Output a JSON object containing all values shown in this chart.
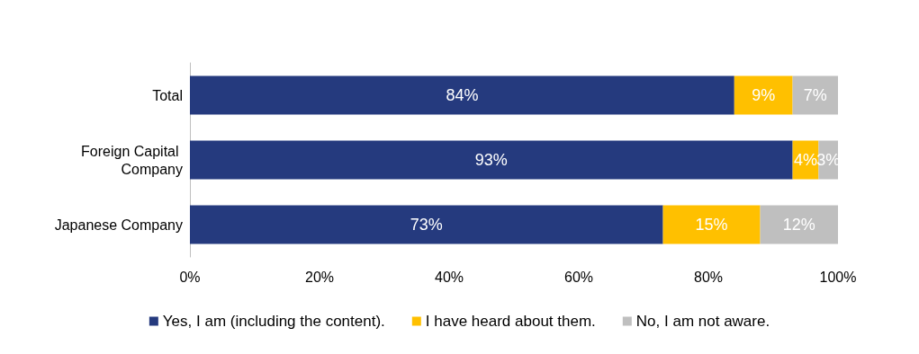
{
  "chart_data": {
    "type": "bar",
    "orientation": "horizontal",
    "stacked": true,
    "categories": [
      "Total",
      "Foreign Capital Company",
      "Japanese Company"
    ],
    "series": [
      {
        "name": "Yes, I am (including the content).",
        "color": "#253a7e",
        "values": [
          84,
          93,
          73
        ],
        "value_labels": [
          "84%",
          "93%",
          "73%"
        ]
      },
      {
        "name": "I have heard about them.",
        "color": "#ffc000",
        "values": [
          9,
          4,
          15
        ],
        "value_labels": [
          "9%",
          "4%",
          "15%"
        ]
      },
      {
        "name": "No, I am not aware.",
        "color": "#bfbfbf",
        "values": [
          7,
          3,
          12
        ],
        "value_labels": [
          "7%",
          "3%",
          "12%"
        ]
      }
    ],
    "xlim": [
      0,
      100
    ],
    "xticks": [
      {
        "value": 0,
        "label": "0%"
      },
      {
        "value": 20,
        "label": "20%"
      },
      {
        "value": 40,
        "label": "40%"
      },
      {
        "value": 60,
        "label": "60%"
      },
      {
        "value": 80,
        "label": "80%"
      },
      {
        "value": 100,
        "label": "100%"
      }
    ],
    "grid": false,
    "legend": "bottom"
  }
}
